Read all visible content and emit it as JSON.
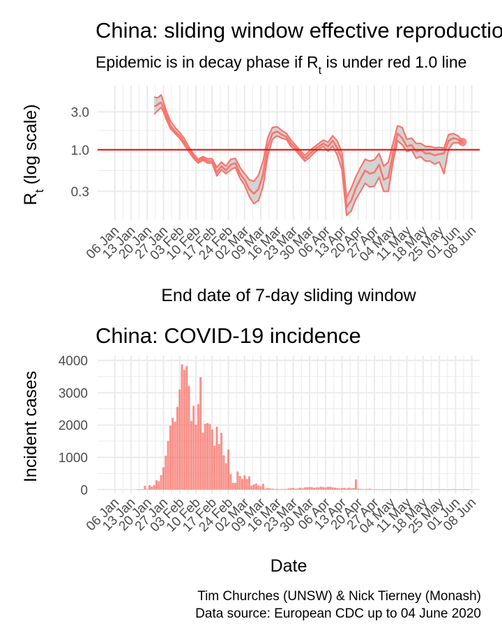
{
  "colors": {
    "series": "#f8766d",
    "ribbon": "#d3d3d3",
    "threshold": "#ee1111",
    "bar": "#f8766d",
    "grid": "#ebebeb",
    "tick": "#4d4d4d"
  },
  "chart_data": [
    {
      "type": "line",
      "title": "China: sliding window effective reproduction number",
      "subtitle_prefix": "Epidemic is in decay phase if R",
      "subtitle_subscript": "t",
      "subtitle_suffix": " is under red 1.0 line",
      "ylabel_main": "R",
      "ylabel_sub": "t",
      "ylabel_suffix": " (log scale)",
      "xlabel": "End date of 7-day sliding window",
      "y_scale": "log10",
      "ylim": [
        0.13,
        6.5
      ],
      "y_ticks": [
        0.3,
        1.0,
        3.0
      ],
      "y_tick_labels": [
        "0.3",
        "1.0",
        "3.0"
      ],
      "x_range": [
        "2020-01-01",
        "2020-06-09"
      ],
      "x_ticks": [
        "2020-01-06",
        "2020-01-13",
        "2020-01-20",
        "2020-01-27",
        "2020-02-03",
        "2020-02-10",
        "2020-02-17",
        "2020-02-24",
        "2020-03-02",
        "2020-03-09",
        "2020-03-16",
        "2020-03-23",
        "2020-03-30",
        "2020-04-06",
        "2020-04-13",
        "2020-04-20",
        "2020-04-27",
        "2020-05-04",
        "2020-05-11",
        "2020-05-18",
        "2020-05-25",
        "2020-06-01",
        "2020-06-08"
      ],
      "x_tick_labels": [
        "06 Jan",
        "13 Jan",
        "20 Jan",
        "27 Jan",
        "03 Feb",
        "10 Feb",
        "17 Feb",
        "24 Feb",
        "02 Mar",
        "09 Mar",
        "16 Mar",
        "23 Mar",
        "30 Mar",
        "06 Apr",
        "13 Apr",
        "20 Apr",
        "27 Apr",
        "04 May",
        "11 May",
        "18 May",
        "25 May",
        "01 Jun",
        "08 Jun"
      ],
      "threshold": 1.0,
      "series": [
        {
          "dates": [
            "2020-01-23",
            "2020-01-24",
            "2020-01-25",
            "2020-01-26",
            "2020-01-27",
            "2020-01-28",
            "2020-01-29",
            "2020-01-30",
            "2020-02-01",
            "2020-02-03",
            "2020-02-05",
            "2020-02-07",
            "2020-02-09",
            "2020-02-11",
            "2020-02-13",
            "2020-02-15",
            "2020-02-17",
            "2020-02-19",
            "2020-02-21",
            "2020-02-23",
            "2020-02-25",
            "2020-02-27",
            "2020-02-29",
            "2020-03-02",
            "2020-03-04",
            "2020-03-06",
            "2020-03-08",
            "2020-03-10",
            "2020-03-12",
            "2020-03-14",
            "2020-03-16",
            "2020-03-18",
            "2020-03-20",
            "2020-03-22",
            "2020-03-24",
            "2020-03-26",
            "2020-03-28",
            "2020-03-30",
            "2020-04-01",
            "2020-04-03",
            "2020-04-05",
            "2020-04-07",
            "2020-04-09",
            "2020-04-11",
            "2020-04-13",
            "2020-04-15",
            "2020-04-17",
            "2020-04-19",
            "2020-04-21",
            "2020-04-23",
            "2020-04-25",
            "2020-04-27",
            "2020-04-29",
            "2020-05-01",
            "2020-05-03",
            "2020-05-05",
            "2020-05-07",
            "2020-05-09",
            "2020-05-11",
            "2020-05-13",
            "2020-05-15",
            "2020-05-17",
            "2020-05-19",
            "2020-05-21",
            "2020-05-23",
            "2020-05-25",
            "2020-05-27",
            "2020-05-29",
            "2020-05-31",
            "2020-06-02",
            "2020-06-04"
          ],
          "mean": [
            3.5,
            3.6,
            3.8,
            3.9,
            3.4,
            2.8,
            2.4,
            2.0,
            1.7,
            1.5,
            1.25,
            1.0,
            0.82,
            0.72,
            0.78,
            0.72,
            0.72,
            0.52,
            0.62,
            0.55,
            0.65,
            0.68,
            0.5,
            0.42,
            0.32,
            0.28,
            0.32,
            0.5,
            1.1,
            1.6,
            1.7,
            1.55,
            1.45,
            1.2,
            1.05,
            0.9,
            0.78,
            0.88,
            1.0,
            1.1,
            1.2,
            1.1,
            1.3,
            1.05,
            0.75,
            0.19,
            0.23,
            0.33,
            0.43,
            0.55,
            0.5,
            0.52,
            0.65,
            0.42,
            0.45,
            0.9,
            1.6,
            1.4,
            1.1,
            1.15,
            0.95,
            1.0,
            0.9,
            0.9,
            0.85,
            0.88,
            0.9,
            1.3,
            1.4,
            1.35,
            1.25
          ],
          "lower": [
            2.8,
            3.0,
            3.2,
            3.4,
            3.0,
            2.5,
            2.15,
            1.85,
            1.6,
            1.4,
            1.15,
            0.94,
            0.78,
            0.68,
            0.74,
            0.68,
            0.68,
            0.47,
            0.56,
            0.5,
            0.56,
            0.6,
            0.44,
            0.36,
            0.26,
            0.21,
            0.23,
            0.35,
            0.85,
            1.35,
            1.5,
            1.4,
            1.35,
            1.1,
            0.98,
            0.84,
            0.72,
            0.8,
            0.92,
            1.02,
            1.1,
            0.96,
            1.12,
            0.85,
            0.56,
            0.15,
            0.17,
            0.24,
            0.3,
            0.38,
            0.34,
            0.35,
            0.45,
            0.3,
            0.3,
            0.7,
            1.3,
            1.15,
            0.95,
            1.0,
            0.78,
            0.82,
            0.72,
            0.72,
            0.66,
            0.7,
            0.5,
            1.02,
            1.22,
            1.22,
            1.2
          ],
          "upper": [
            4.6,
            4.5,
            4.6,
            4.9,
            4.0,
            3.2,
            2.7,
            2.3,
            1.9,
            1.65,
            1.38,
            1.08,
            0.88,
            0.76,
            0.82,
            0.77,
            0.77,
            0.6,
            0.7,
            0.62,
            0.76,
            0.78,
            0.6,
            0.5,
            0.42,
            0.4,
            0.48,
            0.72,
            1.42,
            1.9,
            1.95,
            1.75,
            1.6,
            1.32,
            1.14,
            0.97,
            0.85,
            0.97,
            1.08,
            1.2,
            1.32,
            1.24,
            1.5,
            1.28,
            0.94,
            0.25,
            0.33,
            0.46,
            0.6,
            0.76,
            0.72,
            0.75,
            0.9,
            0.62,
            0.7,
            1.2,
            2.0,
            1.9,
            1.35,
            1.4,
            1.2,
            1.2,
            1.1,
            1.1,
            1.06,
            1.07,
            1.05,
            1.55,
            1.6,
            1.5,
            1.3
          ]
        }
      ]
    },
    {
      "type": "bar",
      "title": "China: COVID-19 incidence",
      "xlabel": "Date",
      "ylabel": "Incident cases",
      "ylim": [
        -120,
        4150
      ],
      "y_ticks": [
        0,
        1000,
        2000,
        3000,
        4000
      ],
      "y_tick_labels": [
        "0",
        "1000",
        "2000",
        "3000",
        "4000"
      ],
      "x_range": [
        "2020-01-01",
        "2020-06-09"
      ],
      "x_ticks": [
        "2020-01-06",
        "2020-01-13",
        "2020-01-20",
        "2020-01-27",
        "2020-02-03",
        "2020-02-10",
        "2020-02-17",
        "2020-02-24",
        "2020-03-02",
        "2020-03-09",
        "2020-03-16",
        "2020-03-23",
        "2020-03-30",
        "2020-04-06",
        "2020-04-13",
        "2020-04-20",
        "2020-04-27",
        "2020-05-04",
        "2020-05-11",
        "2020-05-18",
        "2020-05-25",
        "2020-06-01",
        "2020-06-08"
      ],
      "x_tick_labels": [
        "06 Jan",
        "13 Jan",
        "20 Jan",
        "27 Jan",
        "03 Feb",
        "10 Feb",
        "17 Feb",
        "24 Feb",
        "02 Mar",
        "09 Mar",
        "16 Mar",
        "23 Mar",
        "30 Mar",
        "06 Apr",
        "13 Apr",
        "20 Apr",
        "27 Apr",
        "04 May",
        "11 May",
        "18 May",
        "25 May",
        "01 Jun",
        "08 Jun"
      ],
      "start_date": "2020-01-16",
      "values": [
        5,
        5,
        5,
        120,
        20,
        140,
        100,
        140,
        290,
        260,
        450,
        690,
        1050,
        1510,
        1980,
        2220,
        2100,
        2560,
        3100,
        3880,
        3700,
        3820,
        3210,
        2120,
        2590,
        2010,
        2650,
        3480,
        1760,
        2040,
        2060,
        2030,
        1860,
        1360,
        1950,
        1410,
        1760,
        1060,
        820,
        1240,
        480,
        210,
        210,
        560,
        420,
        330,
        440,
        330,
        410,
        120,
        160,
        190,
        130,
        100,
        180,
        35,
        50,
        40,
        30,
        20,
        20,
        15,
        20,
        20,
        20,
        40,
        45,
        55,
        30,
        40,
        60,
        40,
        70,
        75,
        80,
        80,
        60,
        70,
        70,
        90,
        80,
        70,
        90,
        90,
        70,
        60,
        50,
        40,
        50,
        55,
        40,
        60,
        40,
        50,
        320,
        30,
        20,
        15,
        15,
        20,
        30,
        15,
        10,
        10,
        10,
        10,
        10,
        10,
        5,
        10,
        5,
        10,
        5,
        5,
        5,
        20,
        10,
        10,
        5,
        5,
        10,
        10,
        10,
        5,
        5,
        5,
        5,
        10,
        5,
        5,
        5,
        5,
        5,
        5,
        5,
        5,
        5,
        5,
        5,
        5,
        10,
        5,
        5,
        5
      ]
    }
  ],
  "caption_line1": "Tim Churches (UNSW) & Nick Tierney (Monash)",
  "caption_line2": "Data source: European CDC up to 04 June 2020"
}
